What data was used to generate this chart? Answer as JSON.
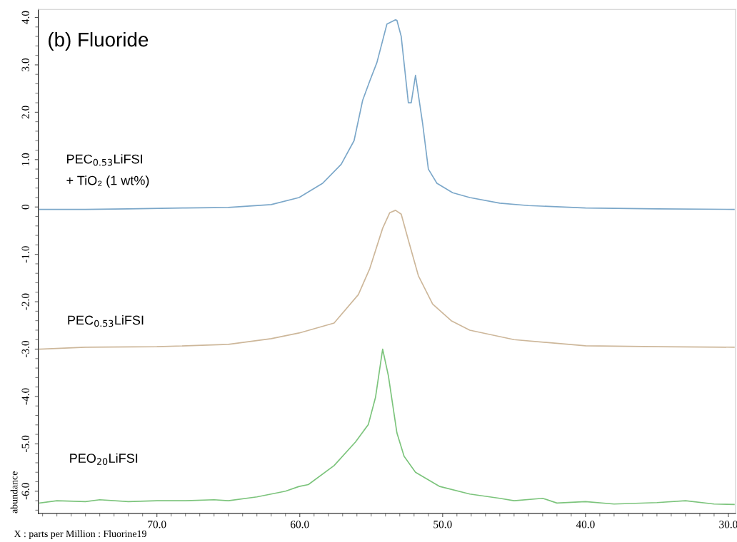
{
  "chart_data": {
    "type": "line",
    "xlabel": "X : parts per Million : Fluorine19",
    "ylabel": "abundance",
    "xlim": [
      78.3,
      29.5
    ],
    "ylim": [
      -6.47,
      4.17
    ],
    "xticks": [
      {
        "value": 70,
        "label": "70.0"
      },
      {
        "value": 60,
        "label": "60.0"
      },
      {
        "value": 50,
        "label": "50.0"
      },
      {
        "value": 40,
        "label": "40.0"
      },
      {
        "value": 30,
        "label": "30.0"
      }
    ],
    "yticks": [
      {
        "value": 4,
        "label": "4.0"
      },
      {
        "value": 3,
        "label": "3.0"
      },
      {
        "value": 2,
        "label": "2.0"
      },
      {
        "value": 1,
        "label": "1.0"
      },
      0,
      {
        "value": -1,
        "label": "-1.0"
      },
      {
        "value": -2,
        "label": "-2.0"
      },
      {
        "value": -3,
        "label": "-3.0"
      },
      {
        "value": -4,
        "label": "-4.0"
      },
      {
        "value": -5,
        "label": "-5.0"
      },
      {
        "value": -6,
        "label": "-6.0"
      }
    ],
    "grid": false,
    "legend": false,
    "marker": "none",
    "line_style": "solid",
    "series": [
      {
        "name": "PEC$_{0.53}$LiFSI\n+ TiO₂ (1 wt%)",
        "color": "#7ba7c9",
        "x": [
          78.2,
          75,
          72,
          68,
          65,
          62,
          60.05,
          58.4,
          57.1,
          56.2,
          55.6,
          55.1,
          54.6,
          53.9,
          53.3,
          53.2,
          52.9,
          52.4,
          52.2,
          51.9,
          51.4,
          51.0,
          50.4,
          49.3,
          48.1,
          46,
          44,
          40,
          35,
          29.6
        ],
        "values": [
          -0.05,
          -0.05,
          -0.04,
          -0.02,
          -0.01,
          0.05,
          0.2,
          0.5,
          0.9,
          1.4,
          2.25,
          2.66,
          3.05,
          3.86,
          3.95,
          3.94,
          3.6,
          2.2,
          2.2,
          2.78,
          1.76,
          0.8,
          0.5,
          0.3,
          0.2,
          0.08,
          0.03,
          -0.02,
          -0.04,
          -0.05
        ]
      },
      {
        "name": "PEC$_{0.53}$LiFSI",
        "color": "#cdb79a",
        "x": [
          78.2,
          75,
          70,
          65,
          62,
          60.05,
          57.6,
          55.9,
          55.1,
          54.2,
          53.7,
          53.3,
          52.9,
          52.4,
          51.7,
          50.7,
          49.4,
          48.1,
          45,
          40,
          35,
          29.6
        ],
        "values": [
          -3.0,
          -2.96,
          -2.95,
          -2.9,
          -2.78,
          -2.66,
          -2.45,
          -1.85,
          -1.3,
          -0.45,
          -0.12,
          -0.07,
          -0.15,
          -0.7,
          -1.45,
          -2.05,
          -2.4,
          -2.6,
          -2.8,
          -2.93,
          -2.95,
          -2.96
        ]
      },
      {
        "name": "PEO$_{20}$LiFSI",
        "color": "#7cc47c",
        "x": [
          78.2,
          77,
          75,
          74,
          72,
          70,
          68,
          66,
          65,
          63,
          61,
          60.05,
          59.4,
          57.6,
          56.1,
          55.2,
          54.7,
          54.2,
          53.8,
          53.2,
          52.7,
          51.9,
          50.2,
          48.1,
          46,
          45,
          43,
          42,
          40,
          38,
          35,
          33,
          31,
          29.6
        ],
        "values": [
          -6.25,
          -6.2,
          -6.22,
          -6.18,
          -6.22,
          -6.2,
          -6.2,
          -6.18,
          -6.2,
          -6.12,
          -6.0,
          -5.9,
          -5.86,
          -5.46,
          -4.96,
          -4.59,
          -4.02,
          -3.0,
          -3.56,
          -4.77,
          -5.26,
          -5.6,
          -5.9,
          -6.06,
          -6.15,
          -6.2,
          -6.15,
          -6.25,
          -6.22,
          -6.27,
          -6.24,
          -6.2,
          -6.27,
          -6.28
        ]
      }
    ],
    "title": "(b) Fluoride"
  }
}
